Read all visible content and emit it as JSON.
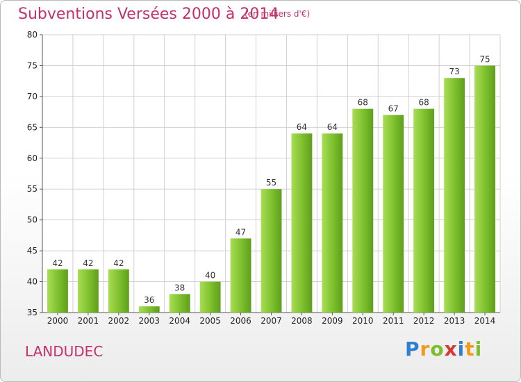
{
  "chart_data": {
    "type": "bar",
    "title": "Subventions Versées 2000 à 2014",
    "subtitle": "(en milliers d'€)",
    "categories": [
      "2000",
      "2001",
      "2002",
      "2003",
      "2004",
      "2005",
      "2006",
      "2007",
      "2008",
      "2009",
      "2010",
      "2011",
      "2012",
      "2013",
      "2014"
    ],
    "values": [
      42,
      42,
      42,
      36,
      38,
      40,
      47,
      55,
      64,
      64,
      68,
      67,
      68,
      73,
      75
    ],
    "ylim": [
      35,
      80
    ],
    "yticks": [
      35,
      40,
      45,
      50,
      55,
      60,
      65,
      70,
      75,
      80
    ],
    "grid": true,
    "bar_color": "#7cbf2c",
    "bar_color_light": "#a9dd55"
  },
  "footer": {
    "commune": "LANDUDEC",
    "logo": "Proxiti"
  },
  "colors": {
    "title": "#c4306a",
    "grid": "#d0d0d0"
  }
}
